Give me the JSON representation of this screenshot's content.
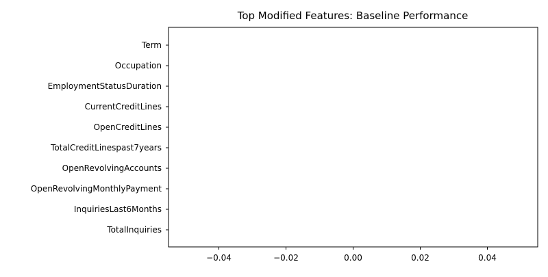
{
  "chart_data": {
    "type": "bar",
    "orientation": "horizontal",
    "title": "Top Modified Features: Baseline Performance",
    "xlabel": "",
    "ylabel": "",
    "categories": [
      "Term",
      "Occupation",
      "EmploymentStatusDuration",
      "CurrentCreditLines",
      "OpenCreditLines",
      "TotalCreditLinespast7years",
      "OpenRevolvingAccounts",
      "OpenRevolvingMonthlyPayment",
      "InquiriesLast6Months",
      "TotalInquiries"
    ],
    "values": [
      0,
      0,
      0,
      0,
      0,
      0,
      0,
      0,
      0,
      0
    ],
    "xlim": [
      -0.055,
      0.055
    ],
    "x_ticks": [
      -0.04,
      -0.02,
      0.0,
      0.02,
      0.04
    ],
    "x_tick_labels": [
      "−0.04",
      "−0.02",
      "0.00",
      "0.02",
      "0.04"
    ],
    "grid": false,
    "legend": "none",
    "colors": {
      "axis": "#000000",
      "bar": "#1f77b4",
      "background": "#ffffff"
    }
  }
}
